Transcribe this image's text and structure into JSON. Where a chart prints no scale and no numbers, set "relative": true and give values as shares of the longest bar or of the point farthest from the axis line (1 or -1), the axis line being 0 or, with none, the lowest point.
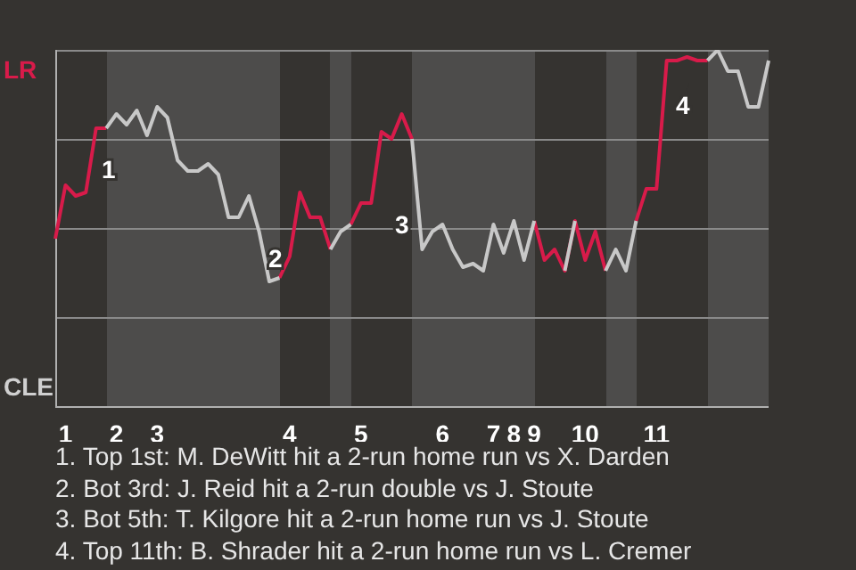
{
  "chart_data": {
    "type": "line",
    "relative": true,
    "categories": [
      null,
      "1",
      null,
      null,
      null,
      null,
      "2",
      null,
      null,
      null,
      "3",
      null,
      null,
      null,
      null,
      null,
      null,
      null,
      null,
      null,
      null,
      null,
      null,
      "4",
      null,
      null,
      null,
      null,
      null,
      null,
      "5",
      null,
      null,
      null,
      null,
      null,
      null,
      null,
      "6",
      null,
      null,
      null,
      null,
      "7",
      null,
      "8",
      null,
      "9",
      null,
      null,
      null,
      null,
      "10",
      null,
      null,
      null,
      null,
      null,
      null,
      "11",
      null,
      null,
      null,
      null,
      null,
      null,
      null,
      null,
      null,
      null,
      null
    ],
    "series": [
      {
        "color": "#c8c8c8",
        "values": [
          null,
          null,
          null,
          null,
          null,
          0.78,
          0.82,
          0.79,
          0.83,
          0.76,
          0.84,
          0.81,
          0.69,
          0.66,
          0.66,
          0.68,
          0.65,
          0.53,
          0.53,
          0.59,
          0.49,
          0.35,
          0.36,
          null,
          null,
          null,
          null,
          0.44,
          0.49,
          0.51,
          null,
          null,
          null,
          null,
          null,
          0.75,
          0.44,
          0.49,
          0.51,
          0.44,
          0.39,
          0.4,
          0.38,
          0.51,
          0.43,
          0.52,
          0.41,
          0.52,
          null,
          null,
          0.38,
          0.52,
          null,
          null,
          0.38,
          0.44,
          0.38,
          0.52,
          null,
          null,
          null,
          null,
          null,
          null,
          0.97,
          1,
          0.94,
          0.94,
          0.84,
          0.84,
          0.97
        ]
      },
      {
        "color": "#d81b4a",
        "values": [
          0.47,
          0.62,
          0.59,
          0.6,
          0.78,
          0.78,
          null,
          null,
          null,
          null,
          null,
          null,
          null,
          null,
          null,
          null,
          null,
          null,
          null,
          null,
          null,
          null,
          0.36,
          0.42,
          0.6,
          0.53,
          0.53,
          0.44,
          null,
          0.51,
          0.57,
          0.57,
          0.77,
          0.75,
          0.82,
          0.75,
          null,
          null,
          null,
          null,
          null,
          null,
          null,
          null,
          null,
          null,
          null,
          0.52,
          0.41,
          0.44,
          0.38,
          0.52,
          0.41,
          0.49,
          0.38,
          null,
          null,
          0.52,
          0.61,
          0.61,
          0.97,
          0.97,
          0.98,
          0.97,
          0.97,
          null,
          null,
          null,
          null,
          null,
          null
        ]
      }
    ],
    "grid": "y",
    "annotations": [
      "LR",
      "CLE",
      "1",
      "2",
      "3",
      "4",
      "1. Top 1st: M. DeWitt hit a 2-run home run vs X. Darden",
      "2. Bot 3rd: J. Reid hit a 2-run double vs J. Stoute",
      "3. Bot 5th: T. Kilgore hit a 2-run home run vs J. Stoute",
      "4. Top 11th: B. Shrader hit a 2-run home run vs L. Cremer"
    ]
  }
}
